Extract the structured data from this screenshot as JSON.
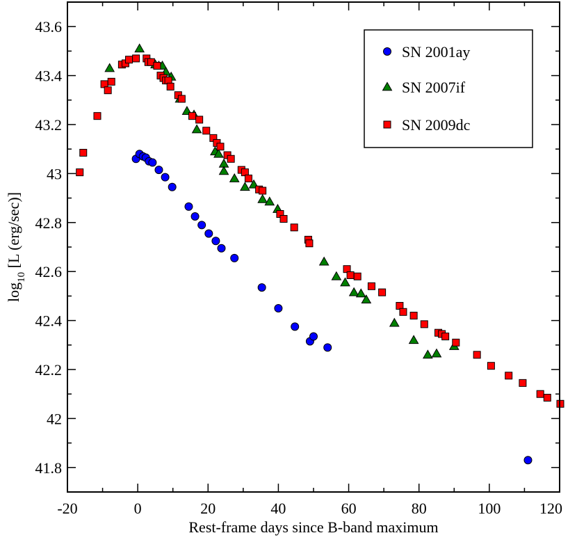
{
  "chart_data": {
    "type": "scatter",
    "title": "",
    "xlabel": "Rest-frame days since B-band maximum",
    "ylabel": {
      "prefix": "log",
      "subscript": "10",
      "suffix": " [L (erg/sec)]"
    },
    "xlim": [
      -20,
      120
    ],
    "ylim": [
      41.7,
      43.7
    ],
    "x_ticks": [
      -20,
      0,
      20,
      40,
      60,
      80,
      100,
      120
    ],
    "x_tick_labels": [
      "-20",
      "0",
      "20",
      "40",
      "60",
      "80",
      "100",
      "120"
    ],
    "y_ticks": [
      41.8,
      42.0,
      42.2,
      42.4,
      42.6,
      42.8,
      43.0,
      43.2,
      43.4,
      43.6
    ],
    "y_tick_labels": [
      "41.8",
      "42",
      "42.2",
      "42.4",
      "42.6",
      "42.8",
      "43",
      "43.2",
      "43.4",
      "43.6"
    ],
    "grid": false,
    "legend_position": "top-right",
    "series": [
      {
        "name": "SN 2001ay",
        "marker": "circle",
        "color": "#0000ff",
        "points": [
          [
            -0.5,
            43.06
          ],
          [
            0.5,
            43.08
          ],
          [
            1.5,
            43.07
          ],
          [
            2.3,
            43.065
          ],
          [
            3.2,
            43.05
          ],
          [
            4.2,
            43.045
          ],
          [
            6.0,
            43.015
          ],
          [
            7.8,
            42.985
          ],
          [
            9.8,
            42.945
          ],
          [
            14.5,
            42.865
          ],
          [
            16.3,
            42.825
          ],
          [
            18.2,
            42.79
          ],
          [
            20.2,
            42.755
          ],
          [
            22.2,
            42.725
          ],
          [
            23.8,
            42.695
          ],
          [
            27.5,
            42.655
          ],
          [
            35.3,
            42.535
          ],
          [
            40.0,
            42.45
          ],
          [
            44.7,
            42.375
          ],
          [
            49.0,
            42.315
          ],
          [
            50.0,
            42.335
          ],
          [
            54.0,
            42.29
          ],
          [
            111.0,
            41.83
          ]
        ]
      },
      {
        "name": "SN 2007if",
        "marker": "triangle",
        "color": "#008000",
        "points": [
          [
            -8.0,
            43.43
          ],
          [
            0.5,
            43.51
          ],
          [
            5.0,
            43.445
          ],
          [
            6.0,
            43.44
          ],
          [
            7.0,
            43.44
          ],
          [
            8.0,
            43.415
          ],
          [
            9.5,
            43.395
          ],
          [
            12.0,
            43.305
          ],
          [
            14.0,
            43.255
          ],
          [
            16.0,
            43.24
          ],
          [
            16.8,
            43.18
          ],
          [
            22.0,
            43.09
          ],
          [
            23.0,
            43.08
          ],
          [
            24.5,
            43.04
          ],
          [
            24.5,
            43.01
          ],
          [
            27.5,
            42.98
          ],
          [
            30.5,
            42.945
          ],
          [
            33.0,
            42.955
          ],
          [
            35.5,
            42.895
          ],
          [
            37.5,
            42.885
          ],
          [
            39.8,
            42.855
          ],
          [
            53.0,
            42.64
          ],
          [
            56.5,
            42.58
          ],
          [
            59.0,
            42.555
          ],
          [
            61.5,
            42.515
          ],
          [
            63.5,
            42.51
          ],
          [
            65.0,
            42.485
          ],
          [
            73.0,
            42.39
          ],
          [
            78.5,
            42.32
          ],
          [
            82.5,
            42.26
          ],
          [
            85.0,
            42.265
          ],
          [
            90.0,
            42.295
          ]
        ]
      },
      {
        "name": "SN 2009dc",
        "marker": "square",
        "color": "#ff0000",
        "points": [
          [
            -16.5,
            43.005
          ],
          [
            -15.5,
            43.085
          ],
          [
            -11.5,
            43.235
          ],
          [
            -9.5,
            43.365
          ],
          [
            -8.5,
            43.34
          ],
          [
            -7.5,
            43.375
          ],
          [
            -4.5,
            43.445
          ],
          [
            -3.5,
            43.45
          ],
          [
            -2.5,
            43.465
          ],
          [
            -0.5,
            43.47
          ],
          [
            2.5,
            43.47
          ],
          [
            3.0,
            43.455
          ],
          [
            3.8,
            43.455
          ],
          [
            5.5,
            43.44
          ],
          [
            6.5,
            43.4
          ],
          [
            7.3,
            43.39
          ],
          [
            8.0,
            43.38
          ],
          [
            8.7,
            43.38
          ],
          [
            9.3,
            43.355
          ],
          [
            11.5,
            43.32
          ],
          [
            12.5,
            43.305
          ],
          [
            15.5,
            43.235
          ],
          [
            17.5,
            43.22
          ],
          [
            19.5,
            43.175
          ],
          [
            21.5,
            43.145
          ],
          [
            22.5,
            43.125
          ],
          [
            23.5,
            43.11
          ],
          [
            25.5,
            43.075
          ],
          [
            26.5,
            43.06
          ],
          [
            29.5,
            43.015
          ],
          [
            30.5,
            43.005
          ],
          [
            31.5,
            42.98
          ],
          [
            34.5,
            42.935
          ],
          [
            35.5,
            42.93
          ],
          [
            40.5,
            42.835
          ],
          [
            41.5,
            42.815
          ],
          [
            44.5,
            42.78
          ],
          [
            48.5,
            42.73
          ],
          [
            48.8,
            42.715
          ],
          [
            59.5,
            42.61
          ],
          [
            60.5,
            42.585
          ],
          [
            62.5,
            42.58
          ],
          [
            66.5,
            42.54
          ],
          [
            69.5,
            42.515
          ],
          [
            74.5,
            42.46
          ],
          [
            75.5,
            42.435
          ],
          [
            78.5,
            42.42
          ],
          [
            81.5,
            42.385
          ],
          [
            85.5,
            42.35
          ],
          [
            86.5,
            42.345
          ],
          [
            87.5,
            42.335
          ],
          [
            90.5,
            42.31
          ],
          [
            96.5,
            42.26
          ],
          [
            100.5,
            42.215
          ],
          [
            105.5,
            42.175
          ],
          [
            109.5,
            42.145
          ],
          [
            114.5,
            42.1
          ],
          [
            116.5,
            42.085
          ],
          [
            120.5,
            42.06
          ]
        ]
      }
    ]
  }
}
